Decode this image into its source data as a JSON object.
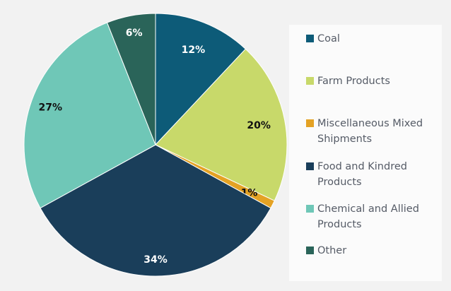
{
  "chart_data": {
    "type": "pie",
    "start": "top",
    "direction": "clockwise",
    "legend_position": "right",
    "series": [
      {
        "name": "Coal",
        "value": 12,
        "label": "12%",
        "color": "#0d5b78"
      },
      {
        "name": "Farm Products",
        "value": 20,
        "label": "20%",
        "color": "#c8d96a"
      },
      {
        "name": "Miscellaneous Mixed Shipments",
        "value": 1,
        "label": "1%",
        "color": "#e4a224"
      },
      {
        "name": "Food and Kindred Products",
        "value": 34,
        "label": "34%",
        "color": "#1a3e5a"
      },
      {
        "name": "Chemical and Allied Products",
        "value": 27,
        "label": "27%",
        "color": "#6fc7b7"
      },
      {
        "name": "Other",
        "value": 6,
        "label": "6%",
        "color": "#2a6459"
      }
    ]
  }
}
